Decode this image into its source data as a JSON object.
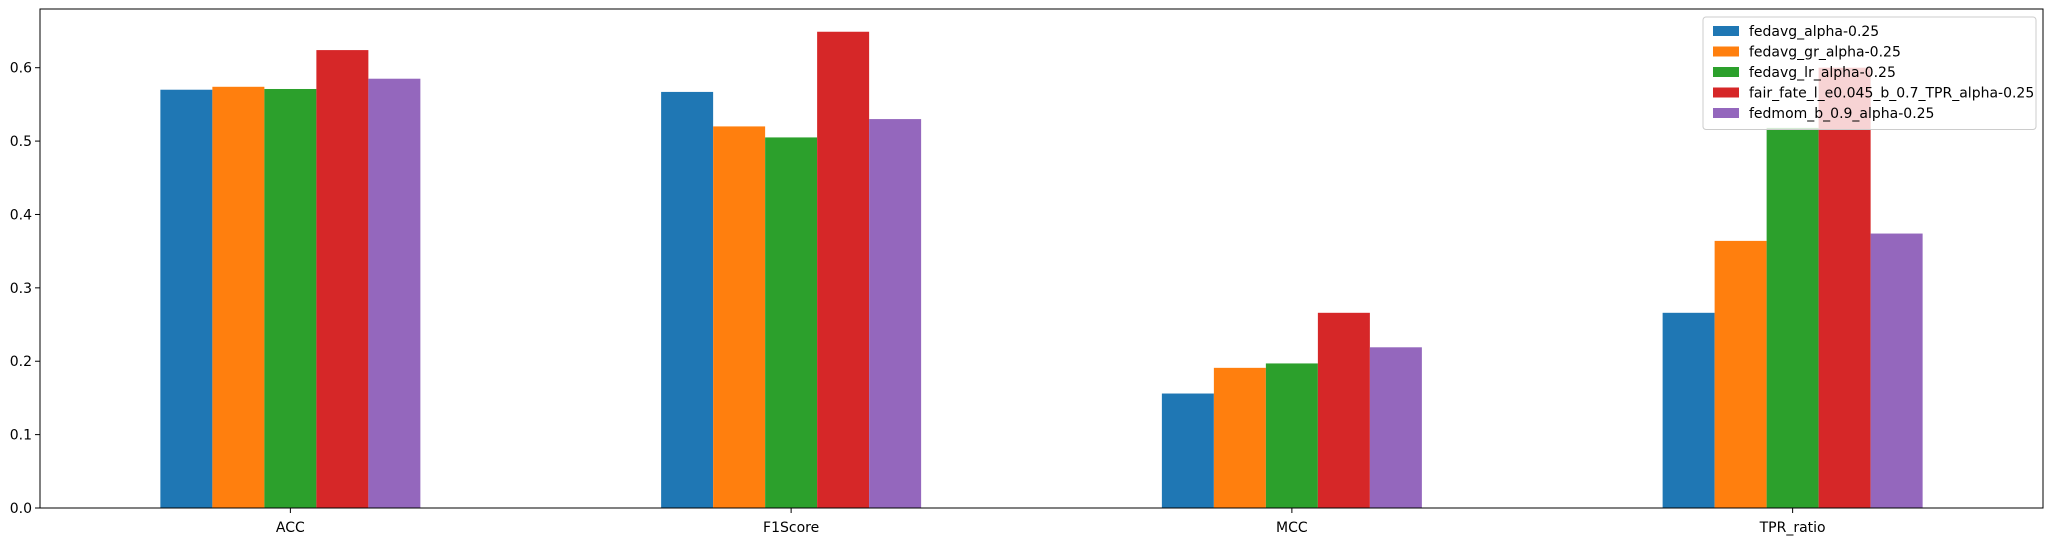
{
  "chart_data": {
    "type": "bar",
    "title": "",
    "xlabel": "",
    "ylabel": "",
    "categories": [
      "ACC",
      "F1Score",
      "MCC",
      "TPR_ratio"
    ],
    "ylim": [
      0,
      0.68
    ],
    "yticks": [
      0.0,
      0.1,
      0.2,
      0.3,
      0.4,
      0.5,
      0.6
    ],
    "ytick_labels": [
      "0.0",
      "0.1",
      "0.2",
      "0.3",
      "0.4",
      "0.5",
      "0.6"
    ],
    "grid": false,
    "legend_position": "top-right",
    "series": [
      {
        "name": "fedavg_alpha-0.25",
        "color": "#1f77b4",
        "values": [
          0.57,
          0.567,
          0.156,
          0.266
        ]
      },
      {
        "name": "fedavg_gr_alpha-0.25",
        "color": "#ff7f0e",
        "values": [
          0.574,
          0.52,
          0.191,
          0.364
        ]
      },
      {
        "name": "fedavg_lr_alpha-0.25",
        "color": "#2ca02c",
        "values": [
          0.571,
          0.505,
          0.197,
          0.518
        ]
      },
      {
        "name": "fair_fate_l_e0.045_b_0.7_TPR_alpha-0.25",
        "color": "#d62728",
        "values": [
          0.624,
          0.649,
          0.266,
          0.6
        ]
      },
      {
        "name": "fedmom_b_0.9_alpha-0.25",
        "color": "#9467bd",
        "values": [
          0.585,
          0.53,
          0.219,
          0.374
        ]
      }
    ]
  }
}
